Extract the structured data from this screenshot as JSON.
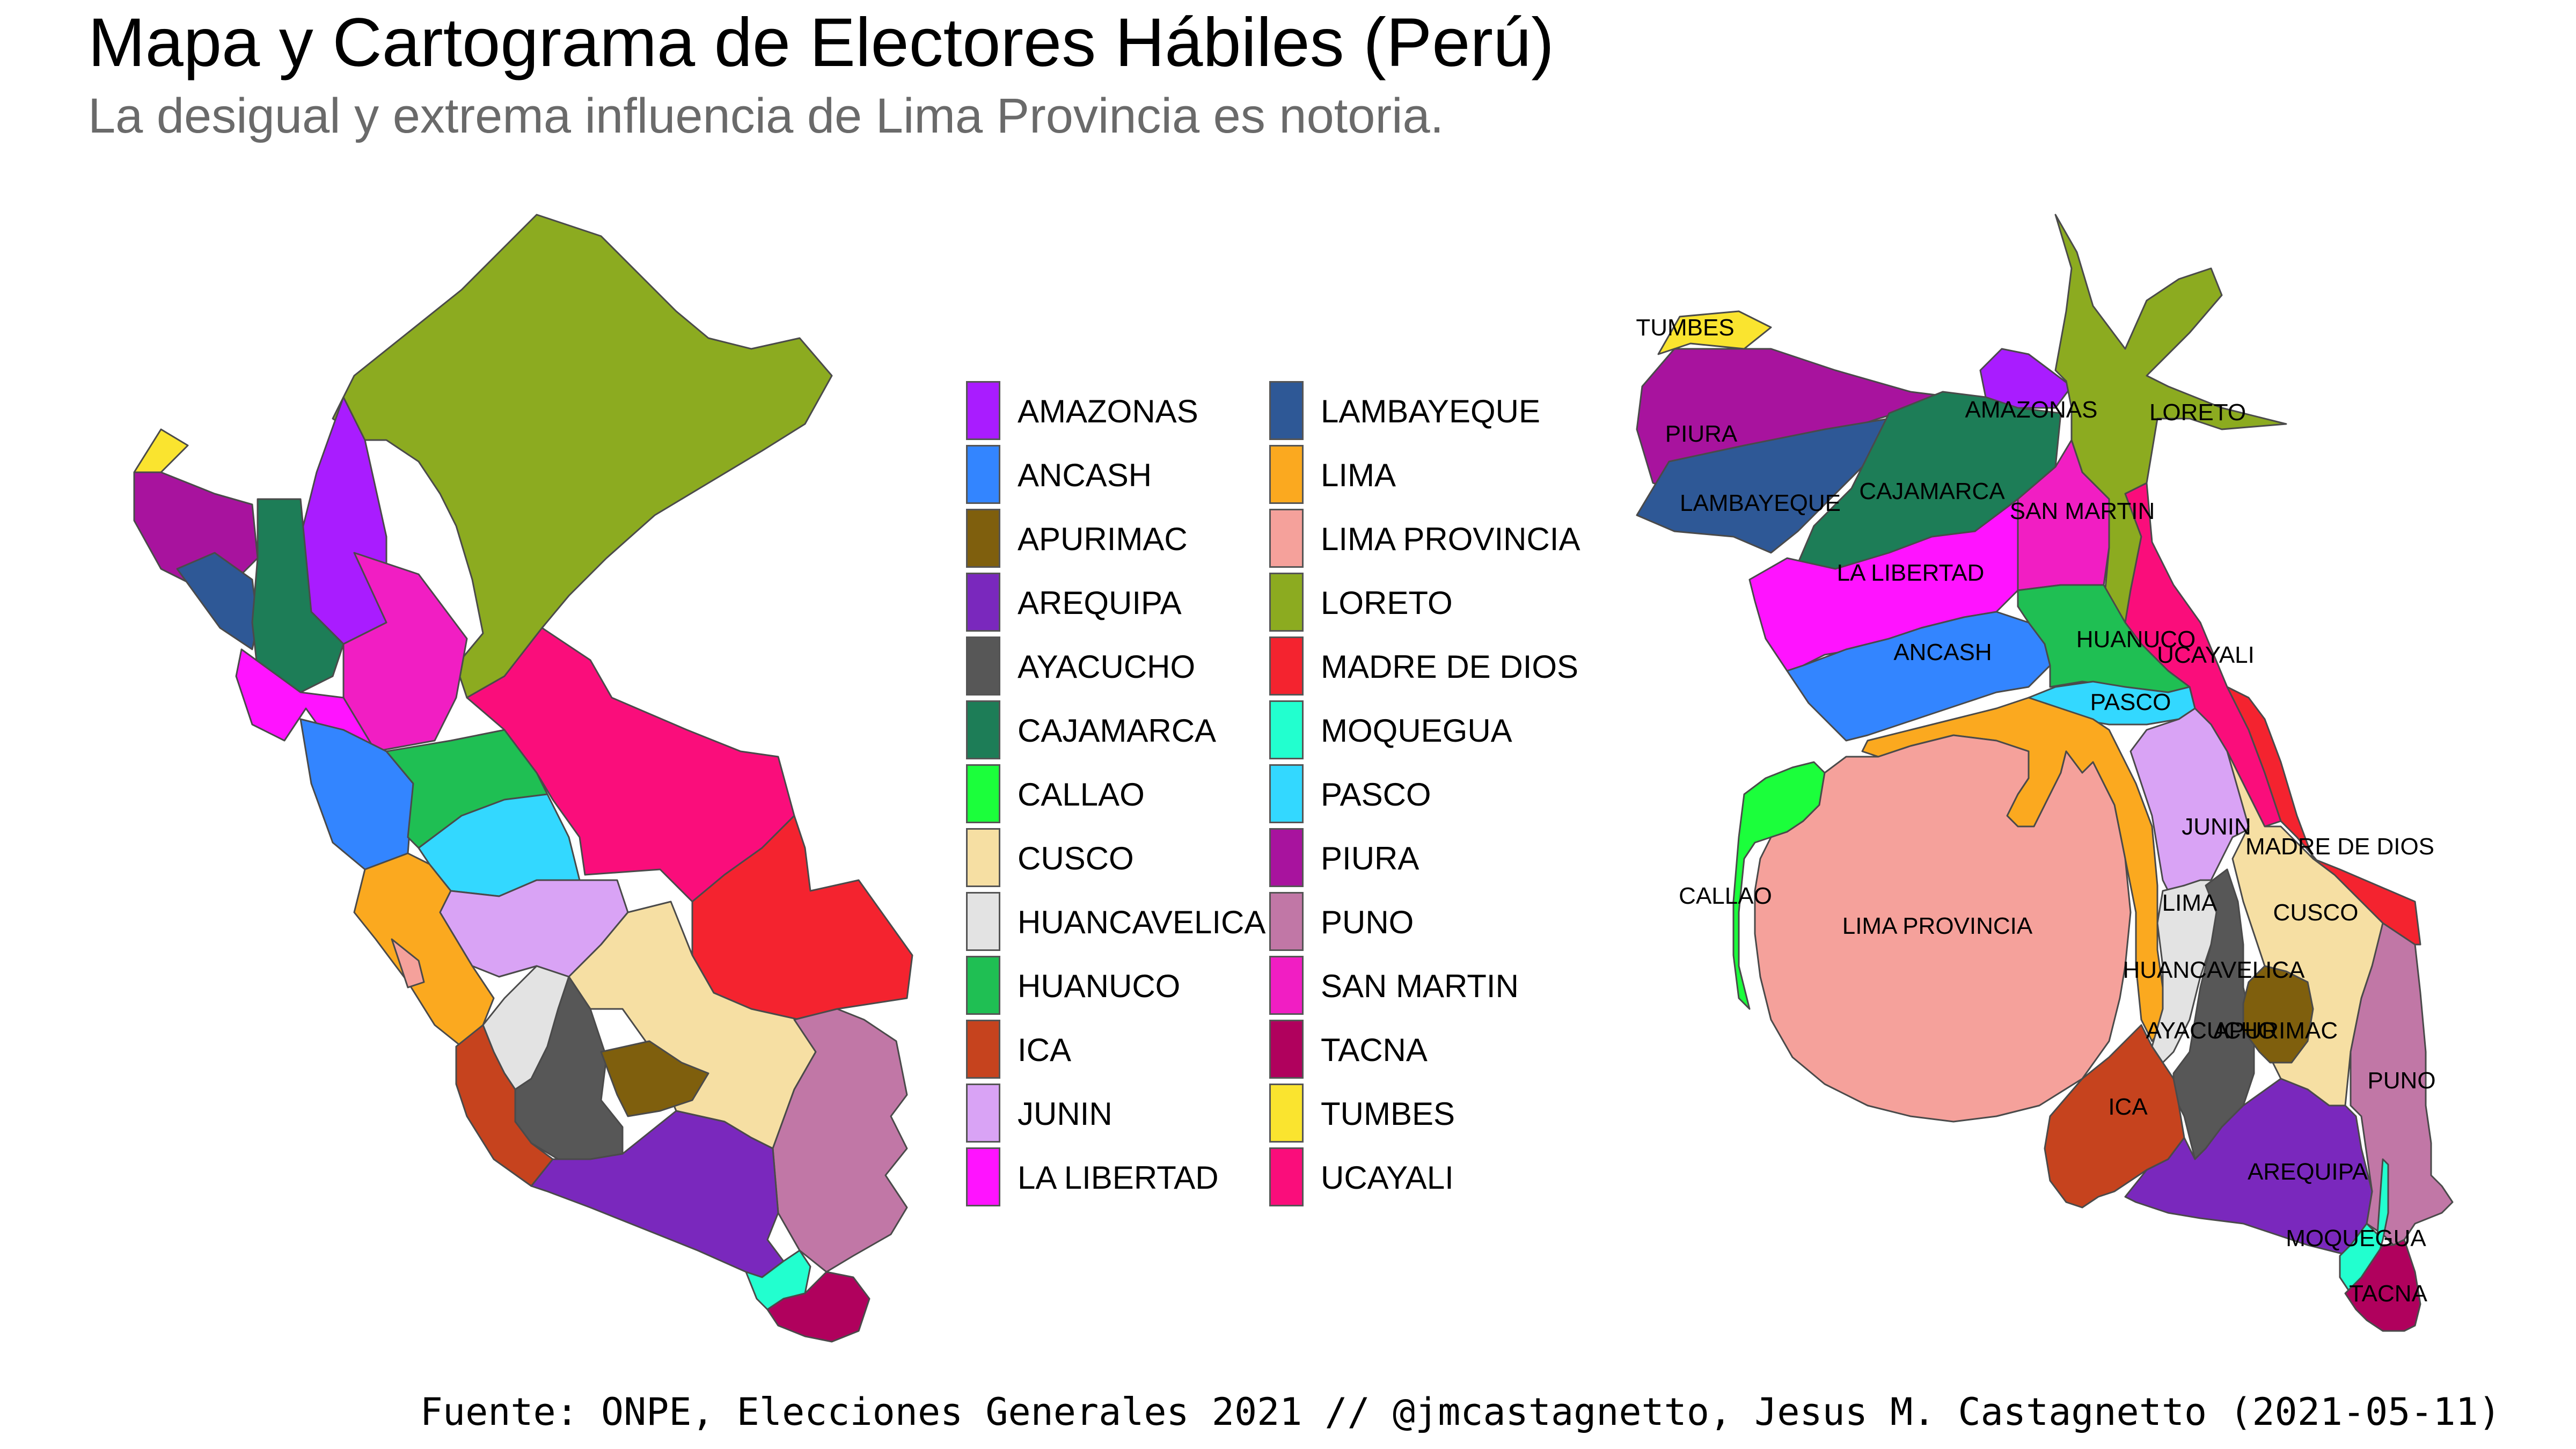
{
  "title": "Mapa y Cartograma de Electores Hábiles (Perú)",
  "subtitle": "La desigual y extrema influencia de Lima Provincia es notoria.",
  "caption": "Fuente: ONPE, Elecciones Generales 2021 // @jmcastagnetto, Jesus M. Castagnetto (2021-05-11)",
  "legend": {
    "items": [
      {
        "label": "AMAZONAS",
        "color": "#a91cff"
      },
      {
        "label": "ANCASH",
        "color": "#3385ff"
      },
      {
        "label": "APURIMAC",
        "color": "#7f5f0d"
      },
      {
        "label": "AREQUIPA",
        "color": "#7a28bd"
      },
      {
        "label": "AYACUCHO",
        "color": "#575757"
      },
      {
        "label": "CAJAMARCA",
        "color": "#1d7d57"
      },
      {
        "label": "CALLAO",
        "color": "#1bff3b"
      },
      {
        "label": "CUSCO",
        "color": "#f6dfa3"
      },
      {
        "label": "HUANCAVELICA",
        "color": "#e3e3e3"
      },
      {
        "label": "HUANUCO",
        "color": "#1fbf53"
      },
      {
        "label": "ICA",
        "color": "#c6431e"
      },
      {
        "label": "JUNIN",
        "color": "#d9a3f5"
      },
      {
        "label": "LA LIBERTAD",
        "color": "#ff13ff"
      },
      {
        "label": "LAMBAYEQUE",
        "color": "#2e5896"
      },
      {
        "label": "LIMA",
        "color": "#fba91f"
      },
      {
        "label": "LIMA PROVINCIA",
        "color": "#f5a19b"
      },
      {
        "label": "LORETO",
        "color": "#8cab20"
      },
      {
        "label": "MADRE DE DIOS",
        "color": "#f4232f"
      },
      {
        "label": "MOQUEGUA",
        "color": "#22ffcf"
      },
      {
        "label": "PASCO",
        "color": "#33d8ff"
      },
      {
        "label": "PIURA",
        "color": "#a8139e"
      },
      {
        "label": "PUNO",
        "color": "#c177a6"
      },
      {
        "label": "SAN MARTIN",
        "color": "#f11ec3"
      },
      {
        "label": "TACNA",
        "color": "#b0015d"
      },
      {
        "label": "TUMBES",
        "color": "#fae42f"
      },
      {
        "label": "UCAYALI",
        "color": "#fa0d7b"
      }
    ]
  },
  "cartogram_labels": {
    "tumbes": "TUMBES",
    "piura": "PIURA",
    "amazonas": "AMAZONAS",
    "loreto": "LORETO",
    "lambayeque": "LAMBAYEQUE",
    "cajamarca": "CAJAMARCA",
    "san_martin": "SAN MARTIN",
    "la_libertad": "LA LIBERTAD",
    "ancash": "ANCASH",
    "huanuco": "HUANUCO",
    "ucayali": "UCAYALI",
    "pasco": "PASCO",
    "junin": "JUNIN",
    "madre_de_dios": "MADRE DE DIOS",
    "callao": "CALLAO",
    "lima_provincia": "LIMA PROVINCIA",
    "lima": "LIMA",
    "cusco": "CUSCO",
    "huancavelica": "HUANCAVELICA",
    "ayacucho": "AYACUCHO",
    "apurimac": "APURIMAC",
    "ica": "ICA",
    "puno": "PUNO",
    "arequipa": "AREQUIPA",
    "moquegua": "MOQUEGUA",
    "tacna": "TACNA"
  }
}
